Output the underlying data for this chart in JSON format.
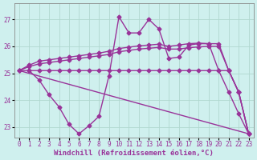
{
  "background_color": "#cff0ee",
  "grid_color": "#b0d8d0",
  "line_color": "#993399",
  "marker": "D",
  "markersize": 2.5,
  "linewidth": 1.0,
  "xlabel": "Windchill (Refroidissement éolien,°C)",
  "xlabel_fontsize": 6.5,
  "tick_fontsize": 5.5,
  "xlim": [
    -0.5,
    23.5
  ],
  "ylim": [
    22.6,
    27.6
  ],
  "yticks": [
    23,
    24,
    25,
    26,
    27
  ],
  "xticks": [
    0,
    1,
    2,
    3,
    4,
    5,
    6,
    7,
    8,
    9,
    10,
    11,
    12,
    13,
    14,
    15,
    16,
    17,
    18,
    19,
    20,
    21,
    22,
    23
  ],
  "s1": [
    25.1,
    25.3,
    25.45,
    25.5,
    25.55,
    25.6,
    25.65,
    25.7,
    25.75,
    25.82,
    25.92,
    25.97,
    26.02,
    26.05,
    26.08,
    26.0,
    26.05,
    26.1,
    26.12,
    26.1,
    26.1,
    25.1,
    24.3,
    22.75
  ],
  "s2": [
    25.1,
    25.25,
    25.35,
    25.4,
    25.45,
    25.5,
    25.55,
    25.6,
    25.65,
    25.7,
    25.8,
    25.85,
    25.9,
    25.93,
    25.96,
    25.9,
    25.9,
    25.95,
    25.98,
    26.0,
    26.0,
    25.1,
    24.3,
    22.75
  ],
  "s3": [
    25.1,
    25.1,
    25.1,
    25.1,
    25.1,
    25.1,
    25.1,
    25.1,
    25.1,
    25.1,
    25.1,
    25.1,
    25.1,
    25.1,
    25.1,
    25.1,
    25.1,
    25.1,
    25.1,
    25.1,
    25.1,
    25.1,
    24.3,
    22.75
  ],
  "s4": [
    25.1,
    25.1,
    24.75,
    24.2,
    23.75,
    23.1,
    22.75,
    23.05,
    23.4,
    24.9,
    27.1,
    26.5,
    26.5,
    27.0,
    26.65,
    25.55,
    25.6,
    26.05,
    26.1,
    26.1,
    25.1,
    24.3,
    23.5,
    22.75
  ]
}
